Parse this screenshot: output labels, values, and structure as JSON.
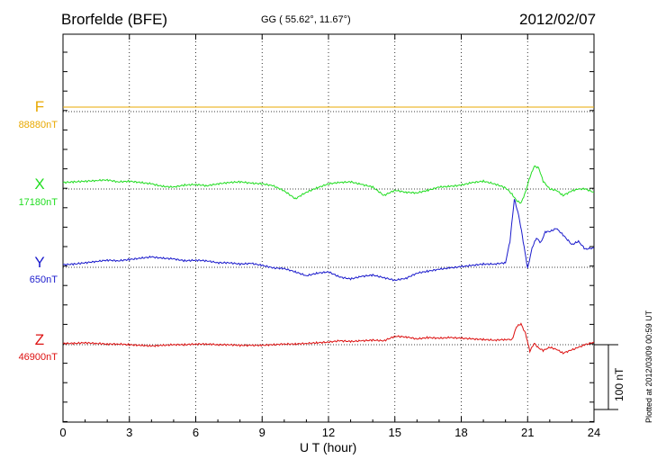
{
  "header": {
    "station": "Brorfelde (BFE)",
    "coords": "GG ( 55.62°,  11.67°)",
    "date": "2012/02/07"
  },
  "footer": {
    "plotted": "Plotted at 2012/03/09 00:59 UT"
  },
  "chart_data": {
    "type": "line",
    "xlabel": "U T (hour)",
    "xlim": [
      0,
      24
    ],
    "xticks": [
      "0",
      "3",
      "6",
      "9",
      "12",
      "15",
      "18",
      "21",
      "24"
    ],
    "scale_bar": "100 nT",
    "scale_bar_nT": 100,
    "grid": "dotted vertical lines every 3 hours",
    "series": [
      {
        "name": "F",
        "baseline_label": "88880nT",
        "color": "#e8a800",
        "baseline": 88880,
        "x": [
          0,
          24
        ],
        "y": [
          7,
          7
        ]
      },
      {
        "name": "X",
        "baseline_label": "17180nT",
        "color": "#22dd22",
        "baseline": 17180,
        "x": [
          0,
          0.5,
          1,
          1.5,
          2,
          2.5,
          3,
          3.5,
          4,
          4.5,
          5,
          5.5,
          6,
          6.5,
          7,
          7.5,
          8,
          8.5,
          9,
          9.5,
          10,
          10.5,
          11,
          11.5,
          12,
          12.5,
          13,
          13.5,
          14,
          14.5,
          15,
          15.5,
          16,
          16.5,
          17,
          17.5,
          18,
          18.5,
          19,
          19.5,
          20,
          20.3,
          20.5,
          20.7,
          20.9,
          21.1,
          21.3,
          21.5,
          21.7,
          22,
          22.3,
          22.6,
          23,
          23.3,
          23.6,
          24
        ],
        "y": [
          10,
          11,
          12,
          13,
          14,
          11,
          12,
          10,
          8,
          4,
          3,
          6,
          7,
          5,
          8,
          10,
          11,
          9,
          8,
          5,
          -3,
          -15,
          -5,
          2,
          8,
          10,
          11,
          7,
          3,
          -10,
          -2,
          -5,
          -6,
          -2,
          3,
          4,
          6,
          10,
          12,
          8,
          2,
          -8,
          -18,
          -22,
          -5,
          18,
          35,
          33,
          12,
          0,
          -2,
          -10,
          -3,
          0,
          0,
          -5
        ]
      },
      {
        "name": "Y",
        "baseline_label": "650nT",
        "color": "#1a1acc",
        "baseline": 650,
        "x": [
          0,
          0.5,
          1,
          1.5,
          2,
          2.5,
          3,
          3.5,
          4,
          4.5,
          5,
          5.5,
          6,
          6.5,
          7,
          7.5,
          8,
          8.5,
          9,
          9.5,
          10,
          10.5,
          11,
          11.5,
          12,
          12.5,
          13,
          13.5,
          14,
          14.5,
          15,
          15.5,
          16,
          16.5,
          17,
          17.5,
          18,
          18.5,
          19,
          19.5,
          20,
          20.2,
          20.4,
          20.6,
          20.8,
          21,
          21.2,
          21.4,
          21.6,
          21.8,
          22,
          22.3,
          22.6,
          23,
          23.3,
          23.6,
          24
        ],
        "y": [
          4,
          5,
          7,
          9,
          11,
          10,
          12,
          14,
          16,
          14,
          13,
          10,
          11,
          10,
          7,
          7,
          5,
          6,
          3,
          -1,
          -2,
          -7,
          -13,
          -9,
          -7,
          -15,
          -18,
          -14,
          -12,
          -16,
          -20,
          -17,
          -9,
          -6,
          -3,
          -1,
          1,
          3,
          5,
          5,
          7,
          40,
          105,
          80,
          40,
          -2,
          30,
          45,
          38,
          55,
          55,
          60,
          50,
          35,
          40,
          28,
          30
        ]
      },
      {
        "name": "Z",
        "baseline_label": "46900nT",
        "color": "#dd1111",
        "baseline": 46900,
        "x": [
          0,
          0.5,
          1,
          1.5,
          2,
          2.5,
          3,
          3.5,
          4,
          4.5,
          5,
          5.5,
          6,
          6.5,
          7,
          7.5,
          8,
          8.5,
          9,
          9.5,
          10,
          10.5,
          11,
          11.5,
          12,
          12.5,
          13,
          13.5,
          14,
          14.5,
          15,
          15.5,
          16,
          16.5,
          17,
          17.5,
          18,
          18.5,
          19,
          19.5,
          20,
          20.3,
          20.5,
          20.7,
          20.9,
          21.1,
          21.3,
          21.5,
          21.7,
          22,
          22.3,
          22.6,
          23,
          23.3,
          23.6,
          24
        ],
        "y": [
          2,
          2,
          3,
          2,
          1,
          1,
          0,
          -1,
          -2,
          -1,
          0,
          0,
          1,
          1,
          0,
          0,
          -1,
          -1,
          -1,
          0,
          1,
          1,
          2,
          3,
          4,
          6,
          5,
          6,
          7,
          6,
          13,
          12,
          9,
          11,
          10,
          11,
          10,
          9,
          8,
          7,
          8,
          8,
          28,
          32,
          18,
          -10,
          2,
          -5,
          -9,
          -4,
          -7,
          -13,
          -8,
          -4,
          0,
          4
        ]
      }
    ]
  }
}
